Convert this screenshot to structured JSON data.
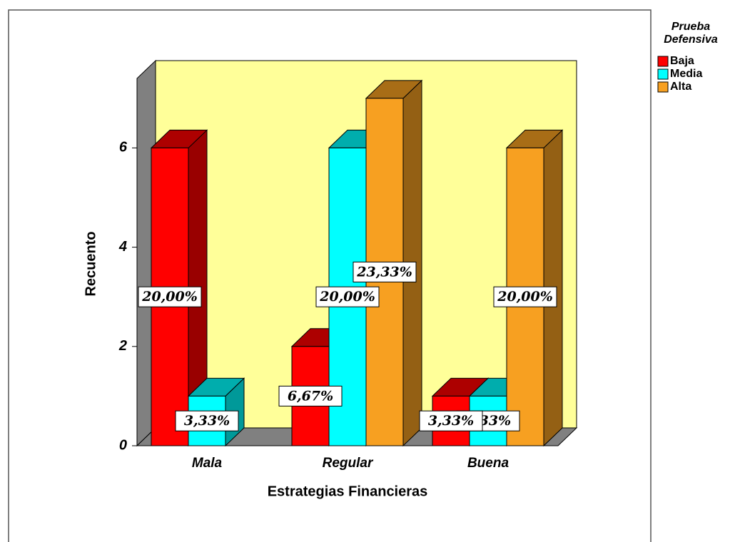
{
  "chart_data": {
    "type": "bar3d",
    "xlabel": "Estrategias Financieras",
    "ylabel": "Recuento",
    "legend_title": [
      "Prueba",
      "Defensiva"
    ],
    "categories": [
      "Mala",
      "Regular",
      "Buena"
    ],
    "series": [
      {
        "name": "Baja",
        "color": "#ff0000",
        "values": [
          6,
          2,
          1
        ],
        "percent_labels": [
          "20,00%",
          "6,67%",
          "3,33%"
        ]
      },
      {
        "name": "Media",
        "color": "#00ffff",
        "values": [
          1,
          6,
          1
        ],
        "percent_labels": [
          "3,33%",
          "20,00%",
          "3,33%"
        ]
      },
      {
        "name": "Alta",
        "color": "#f7a021",
        "values": [
          null,
          7,
          6
        ],
        "percent_labels": [
          null,
          "23,33%",
          "20,00%"
        ]
      }
    ],
    "ylim": [
      0,
      7.4
    ],
    "yticks": [
      0,
      2,
      4,
      6
    ]
  }
}
